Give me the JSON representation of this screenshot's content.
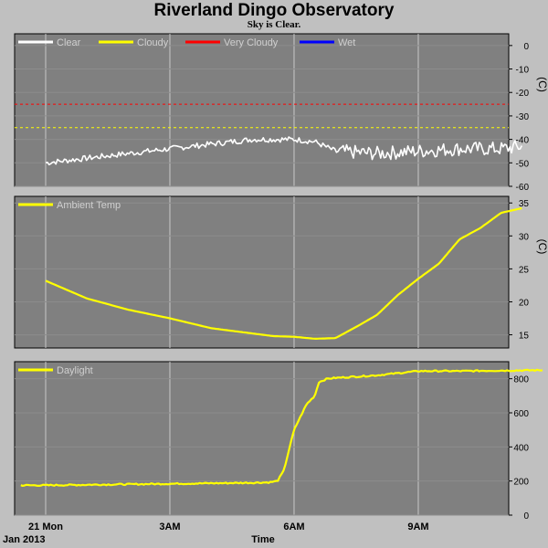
{
  "header": {
    "title": "Riverland Dingo Observatory",
    "subtitle": "Sky is Clear."
  },
  "colors": {
    "background": "#c0c0c0",
    "plot_bg": "#808080",
    "grid": "#c8c8c8",
    "clear": "#ffffff",
    "cloudy": "#ffff00",
    "very_cloudy": "#ff0000",
    "wet": "#0000ff"
  },
  "chart_data": [
    {
      "type": "line",
      "panel": "sky",
      "legend": [
        "Clear",
        "Cloudy",
        "Very Cloudy",
        "Wet"
      ],
      "ylabel": "(C)",
      "ylim": [
        -60,
        5
      ],
      "yticks": [
        0,
        -10,
        -20,
        -30,
        -40,
        -50,
        -60
      ],
      "thresholds": [
        {
          "name": "Cloudy",
          "value": -35
        },
        {
          "name": "Very Cloudy",
          "value": -25
        }
      ],
      "x_hours": [
        0,
        1,
        2,
        3,
        4,
        5,
        5.5,
        6,
        6.5,
        7,
        8,
        9,
        10,
        11,
        11.5
      ],
      "values": [
        -50,
        -48,
        -46,
        -44,
        -42,
        -40,
        -40,
        -40,
        -41,
        -45,
        -46,
        -45,
        -44,
        -44,
        -43
      ],
      "noisy": true,
      "grid": true
    },
    {
      "type": "line",
      "panel": "ambient",
      "series": [
        {
          "name": "Ambient Temp"
        }
      ],
      "ylabel": "(C)",
      "ylim": [
        13,
        36
      ],
      "yticks": [
        15,
        20,
        25,
        30,
        35
      ],
      "x_hours": [
        0,
        1,
        2,
        3,
        4,
        5,
        5.5,
        6,
        6.5,
        7,
        7.5,
        8,
        8.5,
        9,
        9.5,
        10,
        10.5,
        11,
        11.5
      ],
      "values": [
        23.2,
        20.5,
        18.8,
        17.5,
        16.0,
        15.2,
        14.8,
        14.7,
        14.4,
        14.5,
        16.2,
        18.0,
        21.0,
        23.5,
        25.8,
        29.5,
        31.2,
        33.5,
        34.2
      ],
      "grid": true
    },
    {
      "type": "line",
      "panel": "daylight",
      "series": [
        {
          "name": "Daylight"
        }
      ],
      "ylim": [
        0,
        900
      ],
      "yticks": [
        0,
        200,
        400,
        600,
        800
      ],
      "x_hours": [
        -0.6,
        0,
        1,
        2,
        3,
        4,
        5,
        5.4,
        5.6,
        5.75,
        6.0,
        6.3,
        6.5,
        6.6,
        6.8,
        7,
        8,
        9,
        10,
        11,
        12
      ],
      "values": [
        175,
        175,
        178,
        181,
        184,
        187,
        190,
        192,
        200,
        260,
        500,
        650,
        700,
        780,
        800,
        805,
        820,
        845,
        845,
        848,
        850
      ],
      "noisy": true,
      "grid": true
    }
  ],
  "xaxis": {
    "ticks": [
      {
        "hour": 0,
        "label": "21 Mon"
      },
      {
        "hour": 3,
        "label": "3AM"
      },
      {
        "hour": 6,
        "label": "6AM"
      },
      {
        "hour": 9,
        "label": "9AM"
      }
    ],
    "start_label": "Jan 2013",
    "title": "Time"
  }
}
